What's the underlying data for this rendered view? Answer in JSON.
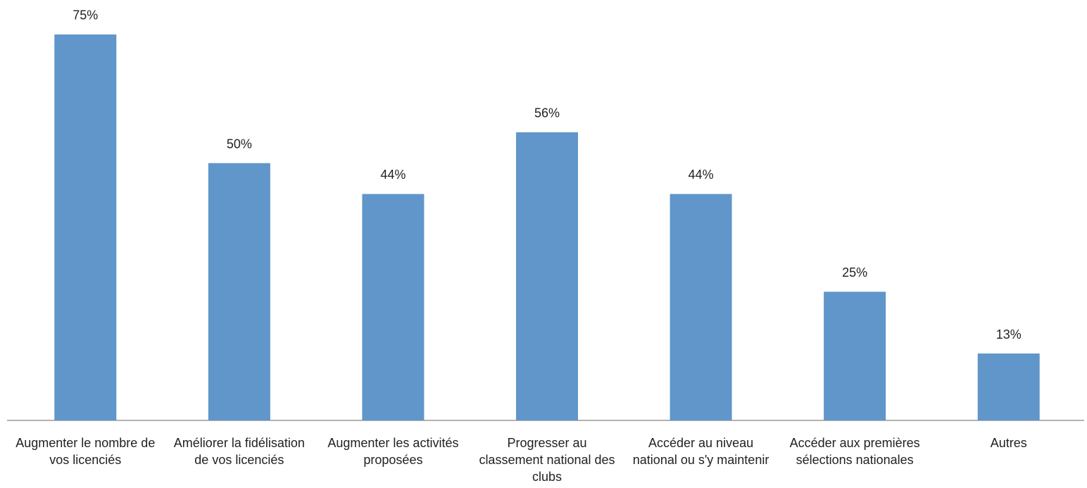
{
  "chart_data": {
    "type": "bar",
    "categories": [
      "Augmenter le nombre de vos licenciés",
      "Améliorer la fidélisation de vos licenciés",
      "Augmenter les activités proposées",
      "Progresser au classement national des clubs",
      "Accéder au niveau national ou s'y maintenir",
      "Accéder aux premières sélections nationales",
      "Autres"
    ],
    "values": [
      75,
      50,
      44,
      56,
      44,
      25,
      13
    ],
    "value_labels": [
      "75%",
      "50%",
      "44%",
      "56%",
      "44%",
      "25%",
      "13%"
    ],
    "color": "#6096c9"
  }
}
